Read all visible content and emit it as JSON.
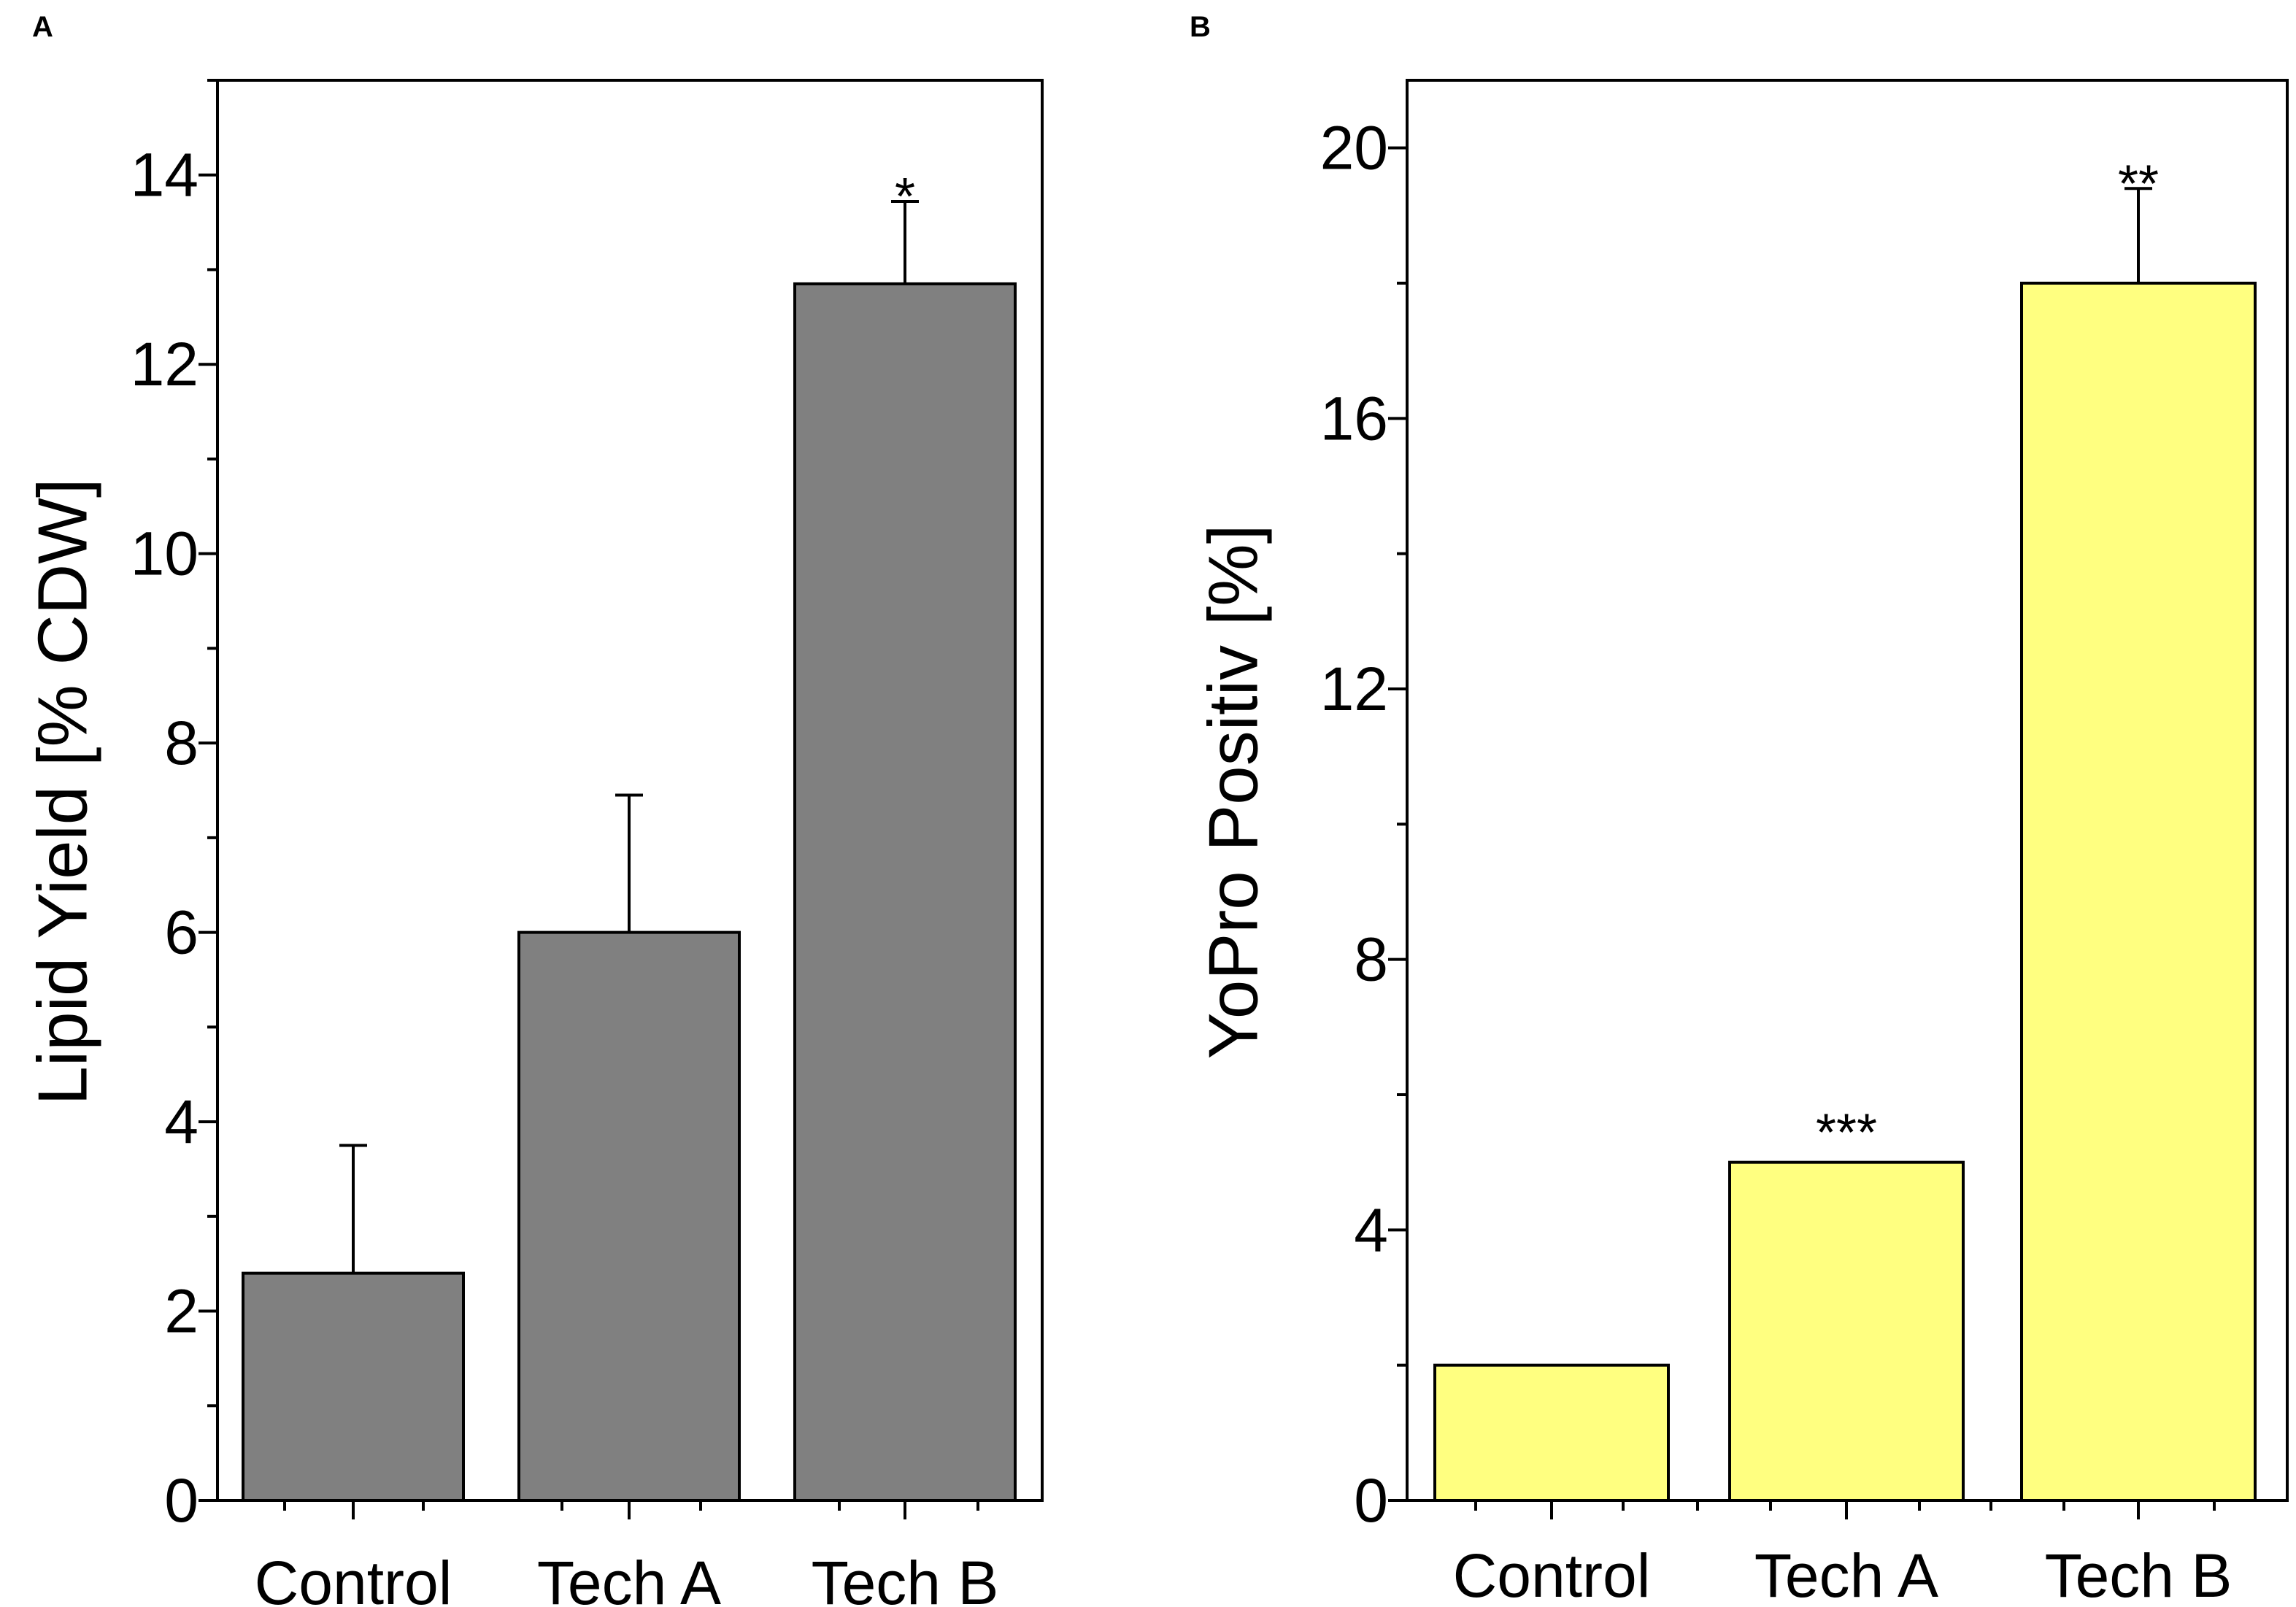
{
  "chart_data": [
    {
      "panel": "A",
      "type": "bar",
      "title": "",
      "xlabel": "",
      "ylabel": "Lipid Yield [% CDW]",
      "categories": [
        "Control",
        "Tech A",
        "Tech B"
      ],
      "values": [
        2.4,
        6.0,
        12.85
      ],
      "errors": [
        1.35,
        1.45,
        0.87
      ],
      "significance": [
        "",
        "",
        "*"
      ],
      "ylim": [
        0,
        15
      ],
      "yticks": [
        0,
        2,
        4,
        6,
        8,
        10,
        12,
        14
      ],
      "ytick_labels": [
        "0",
        "2",
        "4",
        "6",
        "8",
        "10",
        "12",
        "14"
      ],
      "bar_color": "#808080",
      "grid": false
    },
    {
      "panel": "B",
      "type": "bar",
      "title": "",
      "xlabel": "",
      "ylabel": "YoPro Positiv [%]",
      "categories": [
        "Control",
        "Tech A",
        "Tech B"
      ],
      "values": [
        2.0,
        5.0,
        18.0
      ],
      "errors": [
        0,
        0,
        1.4
      ],
      "significance": [
        "",
        "***",
        "**"
      ],
      "ylim": [
        0,
        21
      ],
      "yticks": [
        0,
        4,
        8,
        12,
        16,
        20
      ],
      "ytick_labels": [
        "0",
        "4",
        "8",
        "12",
        "16",
        "20"
      ],
      "bar_color": "#FFFF80",
      "grid": false
    }
  ]
}
